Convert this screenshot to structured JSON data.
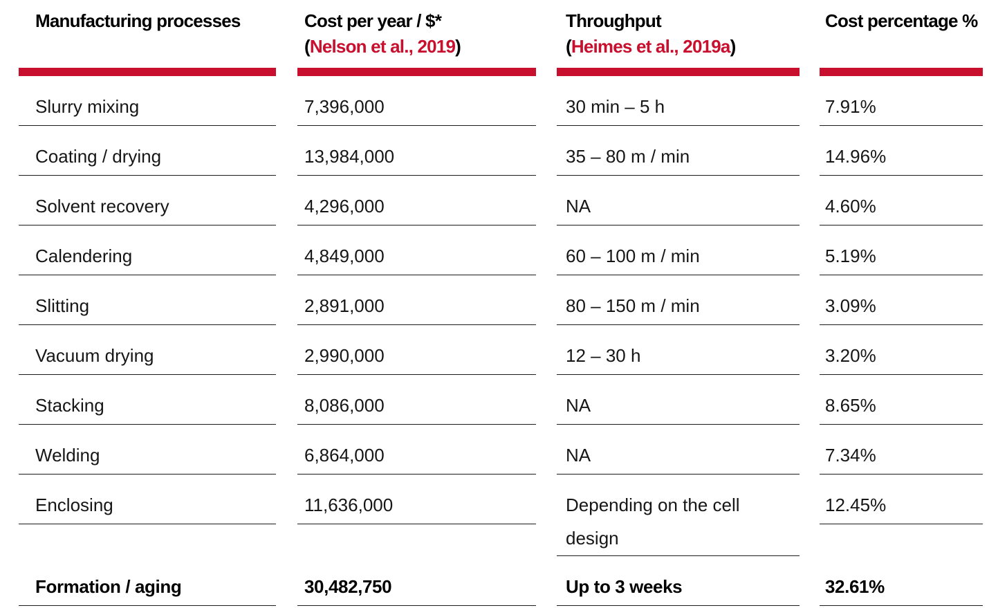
{
  "accent_color": "#c8102e",
  "table": {
    "columns": [
      {
        "label": "Manufacturing processes",
        "citation": ""
      },
      {
        "label": "Cost per year / $*",
        "paren_open": "(",
        "citation": "Nelson et al., 2019",
        "paren_close": ")"
      },
      {
        "label": "Throughput",
        "paren_open": "(",
        "citation": "Heimes et al., 2019a",
        "paren_close": ")"
      },
      {
        "label": "Cost percentage %",
        "citation": ""
      }
    ],
    "rows": [
      {
        "process": "Slurry mixing",
        "cost": "7,396,000",
        "throughput": "30 min – 5 h",
        "percent": "7.91%",
        "emphasis": false
      },
      {
        "process": "Coating / drying",
        "cost": "13,984,000",
        "throughput": "35 – 80 m / min",
        "percent": "14.96%",
        "emphasis": false
      },
      {
        "process": "Solvent recovery",
        "cost": "4,296,000",
        "throughput": "NA",
        "percent": "4.60%",
        "emphasis": false
      },
      {
        "process": "Calendering",
        "cost": "4,849,000",
        "throughput": "60 – 100 m / min",
        "percent": "5.19%",
        "emphasis": false
      },
      {
        "process": "Slitting",
        "cost": "2,891,000",
        "throughput": "80 – 150 m / min",
        "percent": "3.09%",
        "emphasis": false
      },
      {
        "process": "Vacuum drying",
        "cost": "2,990,000",
        "throughput": "12 – 30 h",
        "percent": "3.20%",
        "emphasis": false
      },
      {
        "process": "Stacking",
        "cost": "8,086,000",
        "throughput": "NA",
        "percent": "8.65%",
        "emphasis": false
      },
      {
        "process": "Welding",
        "cost": "6,864,000",
        "throughput": "NA",
        "percent": "7.34%",
        "emphasis": false
      },
      {
        "process": "Enclosing",
        "cost": "11,636,000",
        "throughput": "Depending on the cell design",
        "percent": "12.45%",
        "emphasis": false
      },
      {
        "process": "Formation / aging",
        "cost": "30,482,750",
        "throughput": "Up to 3 weeks",
        "percent": "32.61%",
        "emphasis": true
      }
    ]
  }
}
